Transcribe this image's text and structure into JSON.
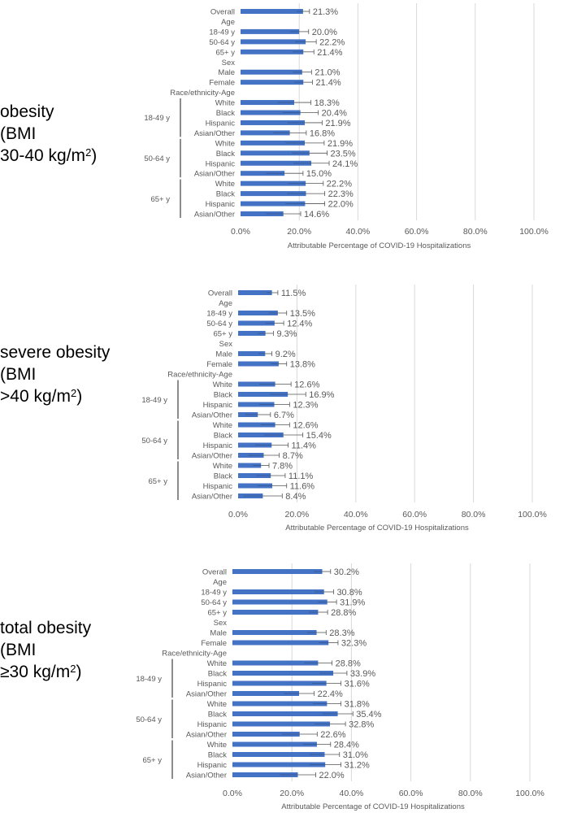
{
  "panels": [
    {
      "line1": "obesity",
      "line2": "(BMI",
      "line3": "30-40 kg/m",
      "sup": "2",
      "close": ")"
    },
    {
      "line1": "severe obesity",
      "line2": "(BMI",
      "line3": ">40 kg/m",
      "sup": "2",
      "close": ")"
    },
    {
      "line1": "total obesity",
      "line2": "(BMI",
      "line3": "≥30 kg/m",
      "sup": "2",
      "close": ")"
    }
  ],
  "chart_data": [
    {
      "type": "bar",
      "orientation": "horizontal",
      "categories": [
        "Overall",
        "Age",
        "18-49 y",
        "50-64 y",
        "65+ y",
        "Sex",
        "Male",
        "Female",
        "Race/ethnicity-Age",
        "White",
        "Black",
        "Hispanic",
        "Asian/Other",
        "White",
        "Black",
        "Hispanic",
        "Asian/Other",
        "White",
        "Black",
        "Hispanic",
        "Asian/Other"
      ],
      "groups": [
        {
          "label": "18-49 y",
          "from": 9,
          "to": 12
        },
        {
          "label": "50-64 y",
          "from": 13,
          "to": 16
        },
        {
          "label": "65+ y",
          "from": 17,
          "to": 20
        }
      ],
      "values": [
        21.3,
        null,
        20.0,
        22.2,
        21.4,
        null,
        21.0,
        21.4,
        null,
        18.3,
        20.4,
        21.9,
        16.8,
        21.9,
        23.5,
        24.1,
        15.0,
        22.2,
        22.3,
        22.0,
        14.6
      ],
      "value_labels": [
        "21.3%",
        "",
        "20.0%",
        "22.2%",
        "21.4%",
        "",
        "21.0%",
        "21.4%",
        "",
        "18.3%",
        "20.4%",
        "21.9%",
        "16.8%",
        "21.9%",
        "23.5%",
        "24.1%",
        "15.0%",
        "22.2%",
        "22.3%",
        "22.0%",
        "14.6%"
      ],
      "error_upper": [
        23.5,
        null,
        23.2,
        25.8,
        25.0,
        null,
        24.2,
        24.5,
        null,
        24.0,
        26.5,
        27.8,
        22.4,
        28.5,
        29.5,
        30.2,
        21.3,
        28.2,
        28.7,
        28.7,
        20.5
      ],
      "xlabel": "Attributable Percentage of COVID-19 Hospitalizations",
      "xlim": [
        0,
        100
      ],
      "xticks": [
        "0.0%",
        "20.0%",
        "40.0%",
        "60.0%",
        "80.0%",
        "100.0%"
      ],
      "grid": true,
      "color": "#4472c4"
    },
    {
      "type": "bar",
      "orientation": "horizontal",
      "categories": [
        "Overall",
        "Age",
        "18-49 y",
        "50-64 y",
        "65+ y",
        "Sex",
        "Male",
        "Female",
        "Race/ethnicity-Age",
        "White",
        "Black",
        "Hispanic",
        "Asian/Other",
        "White",
        "Black",
        "Hispanic",
        "Asian/Other",
        "White",
        "Black",
        "Hispanic",
        "Asian/Other"
      ],
      "groups": [
        {
          "label": "18-49 y",
          "from": 9,
          "to": 12
        },
        {
          "label": "50-64 y",
          "from": 13,
          "to": 16
        },
        {
          "label": "65+ y",
          "from": 17,
          "to": 20
        }
      ],
      "values": [
        11.5,
        null,
        13.5,
        12.4,
        9.3,
        null,
        9.2,
        13.8,
        null,
        12.6,
        16.9,
        12.3,
        6.7,
        12.6,
        15.4,
        11.4,
        8.7,
        7.8,
        11.1,
        11.6,
        8.4
      ],
      "value_labels": [
        "11.5%",
        "",
        "13.5%",
        "12.4%",
        "9.3%",
        "",
        "9.2%",
        "13.8%",
        "",
        "12.6%",
        "16.9%",
        "12.3%",
        "6.7%",
        "12.6%",
        "15.4%",
        "11.4%",
        "8.7%",
        "7.8%",
        "11.1%",
        "11.6%",
        "8.4%"
      ],
      "error_upper": [
        13.5,
        null,
        16.5,
        15.5,
        12.0,
        null,
        11.5,
        16.5,
        null,
        18.0,
        23.0,
        17.5,
        11.0,
        17.5,
        22.0,
        17.0,
        14.0,
        10.5,
        16.0,
        16.5,
        15.0
      ],
      "xlabel": "Attributable Percentage of COVID-19 Hospitalizations",
      "xlim": [
        0,
        100
      ],
      "xticks": [
        "0.0%",
        "20.0%",
        "40.0%",
        "60.0%",
        "80.0%",
        "100.0%"
      ],
      "grid": true,
      "color": "#4472c4"
    },
    {
      "type": "bar",
      "orientation": "horizontal",
      "categories": [
        "Overall",
        "Age",
        "18-49 y",
        "50-64 y",
        "65+ y",
        "Sex",
        "Male",
        "Female",
        "Race/ethnicity-Age",
        "White",
        "Black",
        "Hispanic",
        "Asian/Other",
        "White",
        "Black",
        "Hispanic",
        "Asian/Other",
        "White",
        "Black",
        "Hispanic",
        "Asian/Other"
      ],
      "groups": [
        {
          "label": "18-49 y",
          "from": 9,
          "to": 12
        },
        {
          "label": "50-64 y",
          "from": 13,
          "to": 16
        },
        {
          "label": "65+ y",
          "from": 17,
          "to": 20
        }
      ],
      "values": [
        30.2,
        null,
        30.8,
        31.9,
        28.8,
        null,
        28.3,
        32.3,
        null,
        28.8,
        33.9,
        31.6,
        22.4,
        31.8,
        35.4,
        32.8,
        22.6,
        28.4,
        31.0,
        31.2,
        22.0
      ],
      "value_labels": [
        "30.2%",
        "",
        "30.8%",
        "31.9%",
        "28.8%",
        "",
        "28.3%",
        "32.3%",
        "",
        "28.8%",
        "33.9%",
        "31.6%",
        "22.4%",
        "31.8%",
        "35.4%",
        "32.8%",
        "22.6%",
        "28.4%",
        "31.0%",
        "31.2%",
        "22.0%"
      ],
      "error_upper": [
        33.0,
        null,
        34.0,
        35.0,
        32.0,
        null,
        31.5,
        35.5,
        null,
        33.5,
        38.5,
        36.5,
        27.5,
        36.5,
        40.5,
        38.0,
        28.5,
        33.0,
        36.0,
        36.5,
        28.0
      ],
      "xlabel": "Attributable Percentage of COVID-19 Hospitalizations",
      "xlim": [
        0,
        100
      ],
      "xticks": [
        "0.0%",
        "20.0%",
        "40.0%",
        "60.0%",
        "80.0%",
        "100.0%"
      ],
      "grid": true,
      "color": "#4472c4"
    }
  ]
}
